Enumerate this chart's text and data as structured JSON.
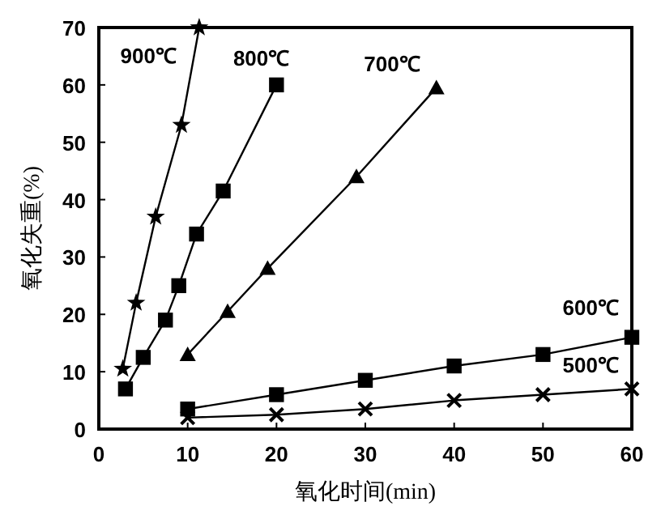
{
  "chart_data": {
    "type": "line",
    "xlabel": "氧化时间(min)",
    "ylabel": "氧化失重(%)",
    "xlim": [
      0,
      60
    ],
    "ylim": [
      0,
      70
    ],
    "xticks": [
      0,
      10,
      20,
      30,
      40,
      50,
      60
    ],
    "yticks": [
      0,
      10,
      20,
      30,
      40,
      50,
      60,
      70
    ],
    "grid": false,
    "line_style": "solid",
    "series": [
      {
        "name": "900℃",
        "color": "#000000",
        "marker": "star",
        "x": [
          2.7,
          4.2,
          6.4,
          9.3,
          11.3
        ],
        "values": [
          10.5,
          22,
          37,
          53,
          70
        ]
      },
      {
        "name": "800℃",
        "color": "#000000",
        "marker": "square",
        "x": [
          3,
          5,
          7.5,
          9,
          11,
          14,
          20
        ],
        "values": [
          7,
          12.5,
          19,
          25,
          34,
          41.5,
          60
        ]
      },
      {
        "name": "700℃",
        "color": "#000000",
        "marker": "triangle",
        "x": [
          10,
          14.5,
          19,
          29,
          38
        ],
        "values": [
          13,
          20.5,
          28,
          44,
          59.5
        ]
      },
      {
        "name": "600℃",
        "color": "#000000",
        "marker": "square",
        "x": [
          10,
          20,
          30,
          40,
          50,
          60
        ],
        "values": [
          3.5,
          6,
          8.5,
          11,
          13,
          16
        ]
      },
      {
        "name": "500℃",
        "color": "#000000",
        "marker": "cross",
        "x": [
          10,
          20,
          30,
          40,
          50,
          60
        ],
        "values": [
          2,
          2.5,
          3.5,
          5,
          6,
          7
        ]
      }
    ]
  }
}
